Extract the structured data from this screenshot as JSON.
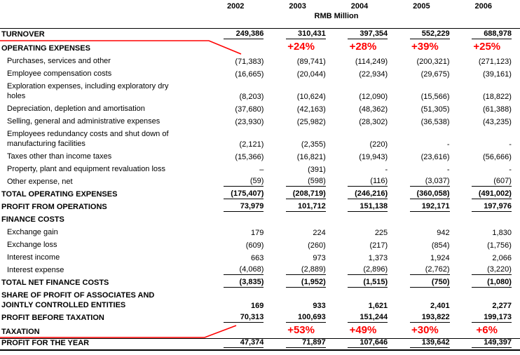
{
  "table": {
    "columns": [
      "2002",
      "2003",
      "2004",
      "2005",
      "2006"
    ],
    "unit_label": "RMB Million",
    "annotation_color": "#ff0000",
    "rows": [
      {
        "label": "TURNOVER",
        "bold": true,
        "underline": true,
        "rule_top": true,
        "values": [
          "249,386",
          "310,431",
          "397,354",
          "552,229",
          "688,978"
        ]
      },
      {
        "label": "OPERATING EXPENSES",
        "bold": true,
        "values": [
          "",
          "",
          "",
          "",
          ""
        ],
        "annotations": [
          "",
          "+24%",
          "+28%",
          "+39%",
          "+25%"
        ]
      },
      {
        "label": "Purchases, services and other",
        "indent": true,
        "values": [
          "(71,383)",
          "(89,741)",
          "(114,249)",
          "(200,321)",
          "(271,123)"
        ]
      },
      {
        "label": "Employee compensation costs",
        "indent": true,
        "values": [
          "(16,665)",
          "(20,044)",
          "(22,934)",
          "(29,675)",
          "(39,161)"
        ]
      },
      {
        "label": "Exploration expenses, including exploratory dry\nholes",
        "indent": true,
        "two_line": true,
        "values": [
          "(8,203)",
          "(10,624)",
          "(12,090)",
          "(15,566)",
          "(18,822)"
        ]
      },
      {
        "label": "Depreciation, depletion and amortisation",
        "indent": true,
        "values": [
          "(37,680)",
          "(42,163)",
          "(48,362)",
          "(51,305)",
          "(61,388)"
        ]
      },
      {
        "label": "Selling, general and administrative expenses",
        "indent": true,
        "values": [
          "(23,930)",
          "(25,982)",
          "(28,302)",
          "(36,538)",
          "(43,235)"
        ]
      },
      {
        "label": "Employees redundancy costs and shut down of\nmanufacturing facilities",
        "indent": true,
        "two_line": true,
        "values": [
          "(2,121)",
          "(2,355)",
          "(220)",
          "-",
          "-"
        ]
      },
      {
        "label": "Taxes other than income taxes",
        "indent": true,
        "values": [
          "(15,366)",
          "(16,821)",
          "(19,943)",
          "(23,616)",
          "(56,666)"
        ]
      },
      {
        "label": "Property, plant and equipment revaluation loss",
        "indent": true,
        "values": [
          "–",
          "(391)",
          "-",
          "-",
          "-"
        ]
      },
      {
        "label": "Other expense, net",
        "indent": true,
        "underline": true,
        "values": [
          "(59)",
          "(598)",
          "(116)",
          "(3,037)",
          "(607)"
        ]
      },
      {
        "label": "TOTAL OPERATING EXPENSES",
        "bold": true,
        "underline": true,
        "values": [
          "(175,407)",
          "(208,719)",
          "(246,216)",
          "(360,058)",
          "(491,002)"
        ]
      },
      {
        "label": "PROFIT FROM OPERATIONS",
        "bold": true,
        "underline": true,
        "values": [
          "73,979",
          "101,712",
          "151,138",
          "192,171",
          "197,976"
        ]
      },
      {
        "label": "FINANCE COSTS",
        "bold": true,
        "values": [
          "",
          "",
          "",
          "",
          ""
        ]
      },
      {
        "label": "Exchange gain",
        "indent": true,
        "values": [
          "179",
          "224",
          "225",
          "942",
          "1,830"
        ]
      },
      {
        "label": "Exchange loss",
        "indent": true,
        "values": [
          "(609)",
          "(260)",
          "(217)",
          "(854)",
          "(1,756)"
        ]
      },
      {
        "label": "Interest income",
        "indent": true,
        "values": [
          "663",
          "973",
          "1,373",
          "1,924",
          "2,066"
        ]
      },
      {
        "label": "Interest expense",
        "indent": true,
        "underline": true,
        "values": [
          "(4,068)",
          "(2,889)",
          "(2,896)",
          "(2,762)",
          "(3,220)"
        ]
      },
      {
        "label": "TOTAL NET FINANCE COSTS",
        "bold": true,
        "underline": true,
        "values": [
          "(3,835)",
          "(1,952)",
          "(1,515)",
          "(750)",
          "(1,080)"
        ]
      },
      {
        "label": "SHARE OF PROFIT OF ASSOCIATES AND\nJOINTLY CONTROLLED ENTITIES",
        "bold": true,
        "two_line": true,
        "values": [
          "169",
          "933",
          "1,621",
          "2,401",
          "2,277"
        ]
      },
      {
        "label": "PROFIT BEFORE TAXATION",
        "bold": true,
        "underline": true,
        "values": [
          "70,313",
          "100,693",
          "151,244",
          "193,822",
          "199,173"
        ]
      },
      {
        "label": "TAXATION",
        "bold": true,
        "values": [
          "",
          "",
          "",
          "",
          ""
        ],
        "annotations": [
          "",
          "+53%",
          "+49%",
          "+30%",
          "+6%"
        ]
      },
      {
        "label": "PROFIT FOR THE YEAR",
        "bold": true,
        "underline": true,
        "rule_top": true,
        "rule_bottom": true,
        "values": [
          "47,374",
          "71,897",
          "107,646",
          "139,642",
          "149,397"
        ]
      }
    ]
  }
}
